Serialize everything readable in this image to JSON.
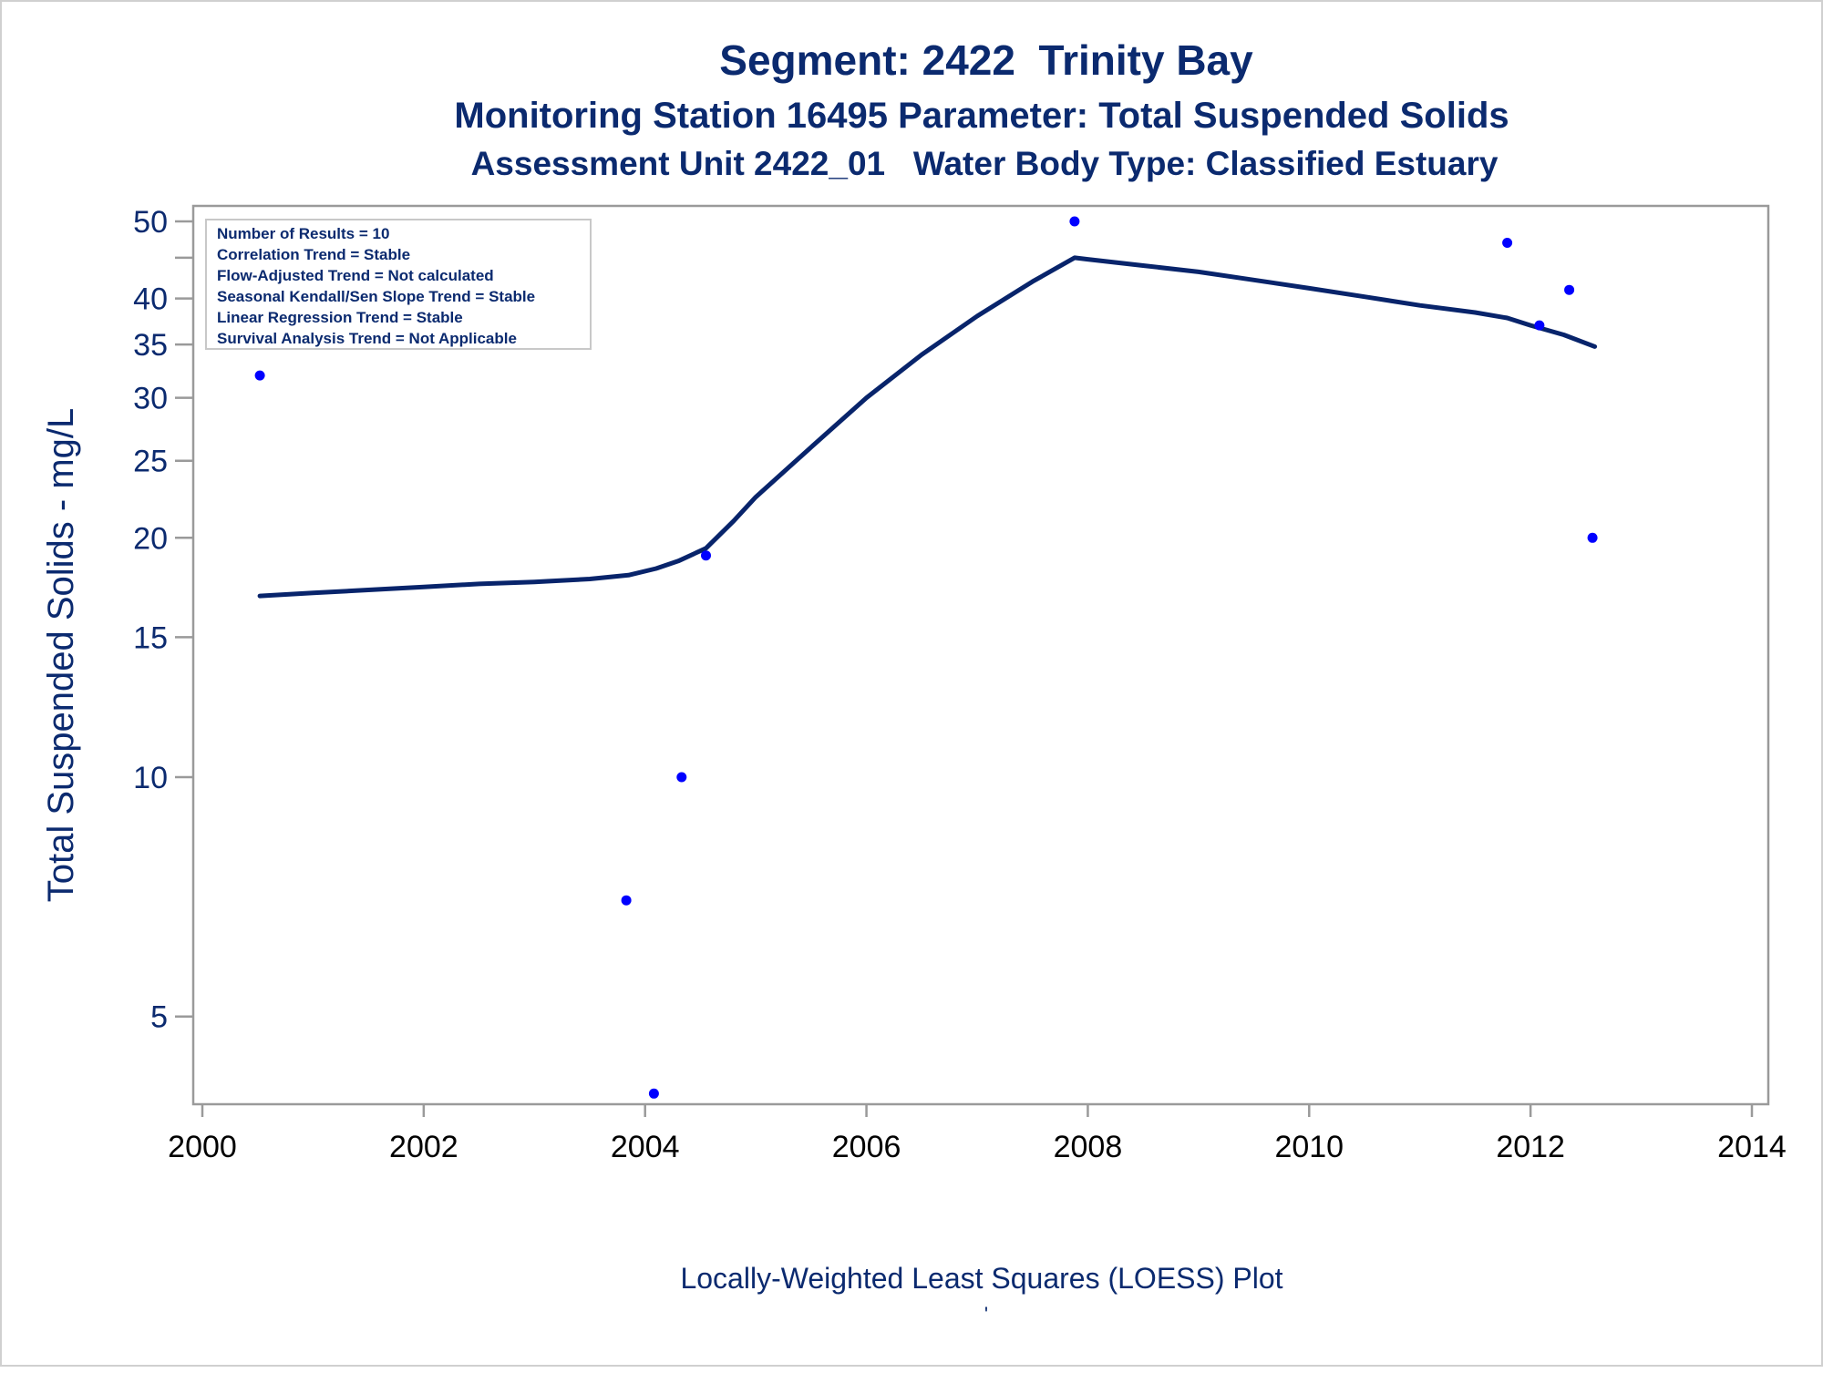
{
  "chart_data": {
    "type": "scatter",
    "title": "Segment: 2422  Trinity Bay",
    "subtitle1": "Monitoring Station 16495 Parameter: Total Suspended Solids",
    "subtitle2": "Assessment Unit 2422_01   Water Body Type: Classified Estuary",
    "xlabel": "Locally-Weighted Least Squares (LOESS) Plot",
    "footnote": "'",
    "ylabel": "Total Suspended Solids - mg/L",
    "xlim": [
      2000,
      2014
    ],
    "ylim": [
      4,
      52
    ],
    "y_scale": "log",
    "x_ticks": [
      "2000",
      "2002",
      "2004",
      "2006",
      "2008",
      "2010",
      "2012",
      "2014"
    ],
    "y_ticks": [
      "5",
      "10",
      "15",
      "20",
      "25",
      "30",
      "35",
      "40",
      "50"
    ],
    "y_minor_ticks": [
      45
    ],
    "grid": false,
    "points": [
      {
        "x": 2000.52,
        "y": 32
      },
      {
        "x": 2003.83,
        "y": 7
      },
      {
        "x": 2004.08,
        "y": 4
      },
      {
        "x": 2004.33,
        "y": 10
      },
      {
        "x": 2004.55,
        "y": 19
      },
      {
        "x": 2007.88,
        "y": 50
      },
      {
        "x": 2011.79,
        "y": 47
      },
      {
        "x": 2012.08,
        "y": 37
      },
      {
        "x": 2012.35,
        "y": 41
      },
      {
        "x": 2012.56,
        "y": 20
      }
    ],
    "loess": [
      [
        2000.52,
        16.9
      ],
      [
        2001.0,
        17.05
      ],
      [
        2001.5,
        17.2
      ],
      [
        2002.0,
        17.35
      ],
      [
        2002.5,
        17.5
      ],
      [
        2003.0,
        17.6
      ],
      [
        2003.5,
        17.75
      ],
      [
        2003.85,
        17.95
      ],
      [
        2004.1,
        18.3
      ],
      [
        2004.3,
        18.7
      ],
      [
        2004.55,
        19.4
      ],
      [
        2004.8,
        21.0
      ],
      [
        2005.0,
        22.5
      ],
      [
        2005.5,
        26.0
      ],
      [
        2006.0,
        30.0
      ],
      [
        2006.5,
        34.0
      ],
      [
        2007.0,
        38.0
      ],
      [
        2007.5,
        42.0
      ],
      [
        2007.88,
        45.0
      ],
      [
        2008.0,
        44.8
      ],
      [
        2008.5,
        44.0
      ],
      [
        2009.0,
        43.2
      ],
      [
        2009.5,
        42.2
      ],
      [
        2010.0,
        41.2
      ],
      [
        2010.5,
        40.2
      ],
      [
        2011.0,
        39.2
      ],
      [
        2011.5,
        38.4
      ],
      [
        2011.79,
        37.8
      ],
      [
        2012.0,
        37.0
      ],
      [
        2012.3,
        36.0
      ],
      [
        2012.58,
        34.8
      ]
    ],
    "legend_placement": "top-left",
    "stats": [
      "Number of Results = 10",
      "Correlation Trend = Stable",
      "Flow-Adjusted Trend = Not calculated",
      "Seasonal Kendall/Sen Slope Trend = Stable",
      "Linear Regression Trend = Stable",
      "Survival Analysis Trend = Not Applicable"
    ],
    "colors": {
      "title": "#0b2a6f",
      "axis_text": "#0b2a6f",
      "tick_text": "#000000",
      "point": "#0000ff",
      "line": "#08246b",
      "frame": "#9a9a9a"
    }
  }
}
